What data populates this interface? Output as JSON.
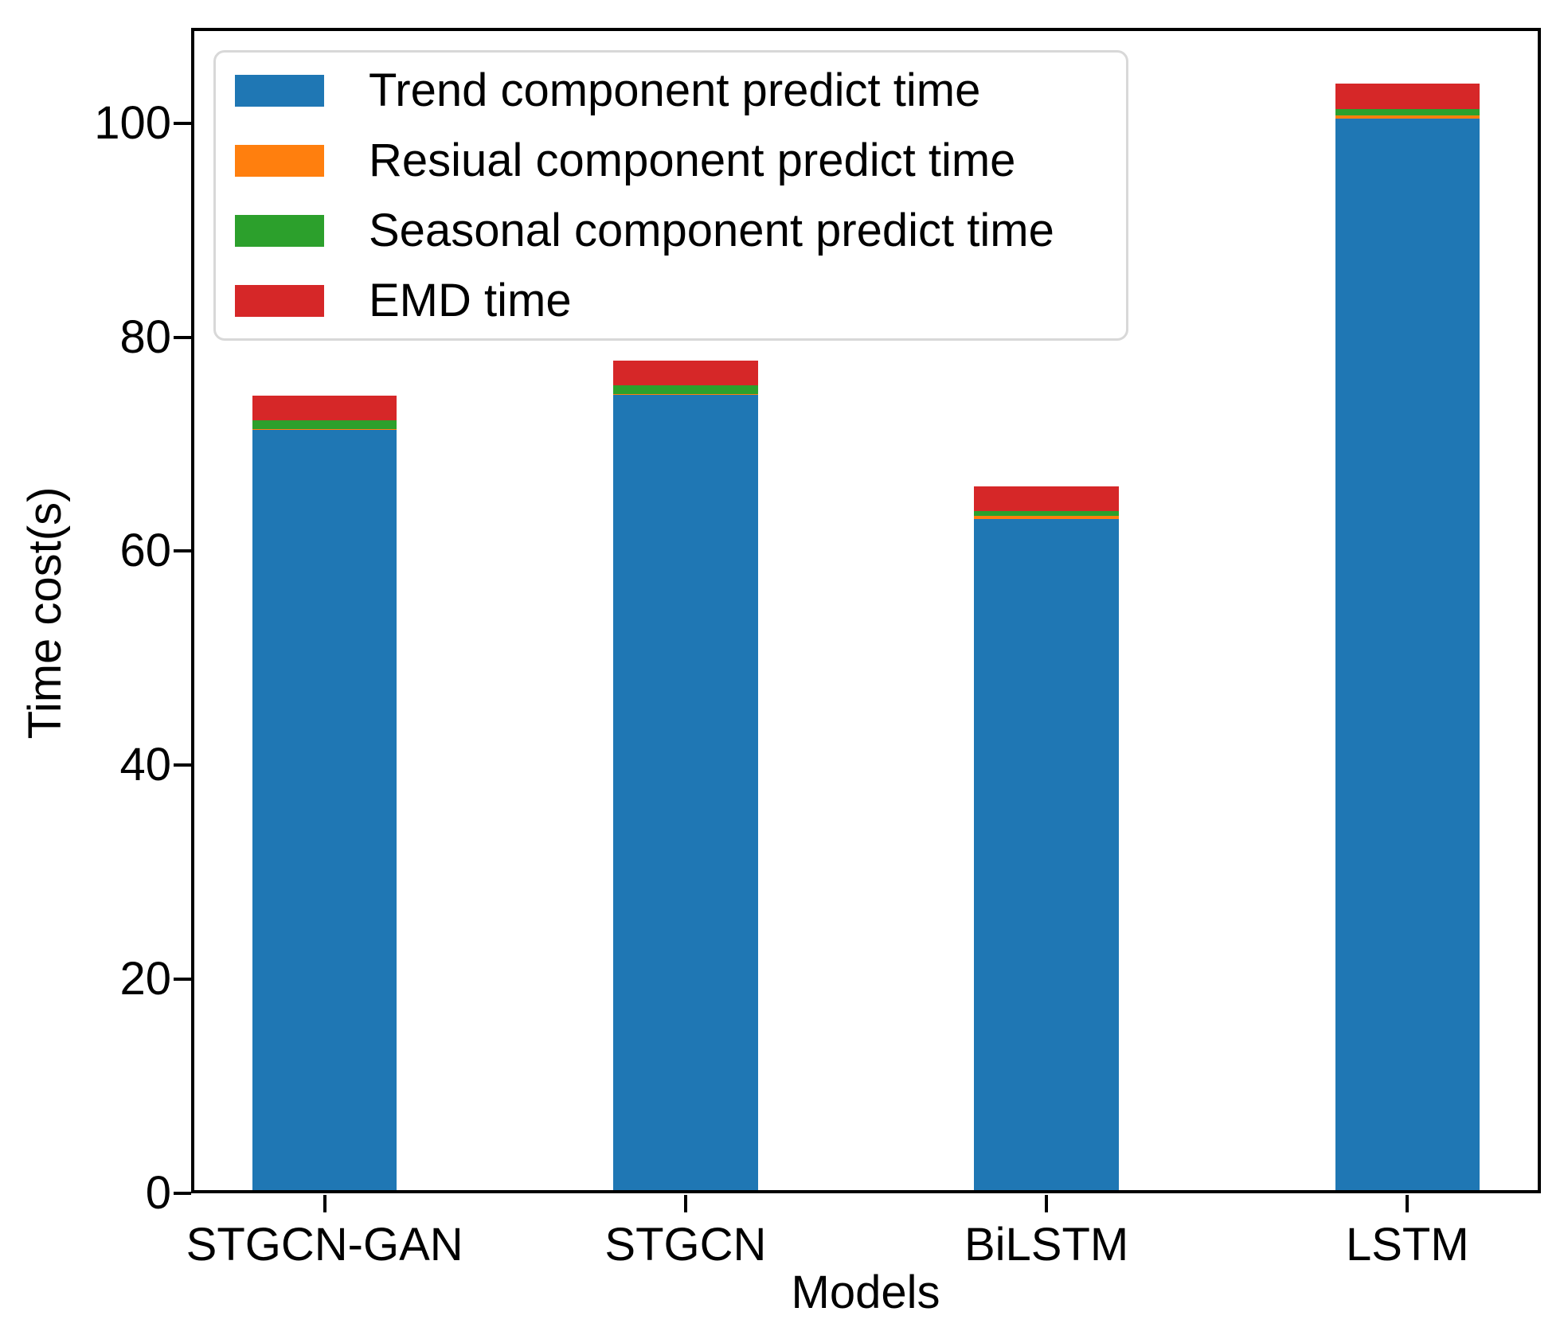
{
  "chart_data": {
    "type": "bar",
    "stacked": true,
    "categories": [
      "STGCN-GAN",
      "STGCN",
      "BiLSTM",
      "LSTM"
    ],
    "series": [
      {
        "name": "Trend component predict time",
        "color": "#1f77b4",
        "values": [
          71.3,
          74.6,
          63.0,
          100.4
        ]
      },
      {
        "name": "Resiual component predict time",
        "color": "#ff7f0e",
        "values": [
          0.1,
          0.1,
          0.3,
          0.3
        ]
      },
      {
        "name": "Seasonal component predict time",
        "color": "#2ca02c",
        "values": [
          0.8,
          0.77,
          0.42,
          0.62
        ]
      },
      {
        "name": "EMD time",
        "color": "#d62728",
        "values": [
          2.3,
          2.35,
          2.3,
          2.35
        ]
      }
    ],
    "title": "",
    "xlabel": "Models",
    "ylabel": "Time cost(s)",
    "yticks": [
      0,
      20,
      40,
      60,
      80,
      100
    ],
    "ylim": [
      0,
      108.9
    ],
    "xlim": [
      -0.37,
      3.37
    ],
    "bar_width": 0.4,
    "grid": false,
    "legend_position": "upper left",
    "axis_color": "#000000",
    "legend_border_color": "#d8d8d8"
  }
}
